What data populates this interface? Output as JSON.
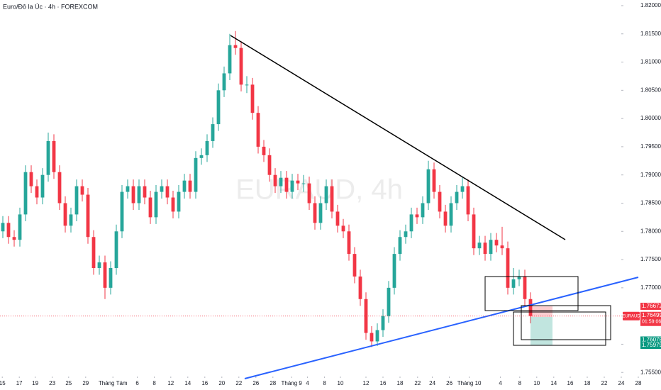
{
  "chart_data": {
    "type": "candlestick",
    "title": "Euro/Đô la Úc · 4h · FOREXCOM",
    "watermark": "EURAUD, 4h",
    "up_color": "#26a69a",
    "down_color": "#f23645",
    "grid": false,
    "ylim": [
      1.7544,
      1.821
    ],
    "yticks": [
      {
        "value": 1.755,
        "label": "1.75500"
      },
      {
        "value": 1.76,
        "label": "1.76000"
      },
      {
        "value": 1.765,
        "label": "1.76500"
      },
      {
        "value": 1.77,
        "label": "1.77000"
      },
      {
        "value": 1.775,
        "label": "1.77500"
      },
      {
        "value": 1.78,
        "label": "1.78000"
      },
      {
        "value": 1.785,
        "label": "1.78500"
      },
      {
        "value": 1.79,
        "label": "1.79000"
      },
      {
        "value": 1.795,
        "label": "1.79500"
      },
      {
        "value": 1.8,
        "label": "1.80000"
      },
      {
        "value": 1.805,
        "label": "1.80500"
      },
      {
        "value": 1.81,
        "label": "1.81000"
      },
      {
        "value": 1.815,
        "label": "1.81500"
      },
      {
        "value": 1.82,
        "label": "1.82000"
      }
    ],
    "xlim": [
      0,
      116.5
    ],
    "xticks": [
      {
        "value": 0.4,
        "label": "15"
      },
      {
        "value": 3.4,
        "label": "17"
      },
      {
        "value": 6.2,
        "label": "19"
      },
      {
        "value": 9.2,
        "label": "23"
      },
      {
        "value": 12.1,
        "label": "25"
      },
      {
        "value": 15.1,
        "label": "29"
      },
      {
        "value": 19.9,
        "label": "Tháng Tám"
      },
      {
        "value": 24.2,
        "label": "6"
      },
      {
        "value": 27.2,
        "label": "8"
      },
      {
        "value": 30.1,
        "label": "12"
      },
      {
        "value": 33.1,
        "label": "14"
      },
      {
        "value": 36.1,
        "label": "16"
      },
      {
        "value": 39.1,
        "label": "20"
      },
      {
        "value": 42.1,
        "label": "22"
      },
      {
        "value": 45.1,
        "label": "26"
      },
      {
        "value": 48.1,
        "label": "28"
      },
      {
        "value": 51.4,
        "label": "Tháng 9"
      },
      {
        "value": 54.2,
        "label": "4"
      },
      {
        "value": 57.2,
        "label": "8"
      },
      {
        "value": 60,
        "label": "10"
      },
      {
        "value": 64.5,
        "label": "12"
      },
      {
        "value": 67.5,
        "label": "16"
      },
      {
        "value": 70.5,
        "label": "18"
      },
      {
        "value": 73.6,
        "label": "22"
      },
      {
        "value": 76.2,
        "label": "24"
      },
      {
        "value": 79.2,
        "label": "26"
      },
      {
        "value": 82.7,
        "label": "Tháng 10"
      },
      {
        "value": 88.2,
        "label": "4"
      },
      {
        "value": 91.6,
        "label": "8"
      },
      {
        "value": 94.6,
        "label": "10"
      },
      {
        "value": 97.6,
        "label": "14"
      },
      {
        "value": 100.5,
        "label": "16"
      },
      {
        "value": 103.5,
        "label": "18"
      },
      {
        "value": 106.5,
        "label": "22"
      },
      {
        "value": 109.5,
        "label": "24"
      },
      {
        "value": 112.5,
        "label": "28"
      }
    ],
    "open": [
      1.78,
      1.7815,
      1.779,
      1.7785,
      1.783,
      1.7905,
      1.788,
      1.786,
      1.79,
      1.796,
      1.7905,
      1.785,
      1.781,
      1.783,
      1.788,
      1.7865,
      1.779,
      1.7735,
      1.7745,
      1.77,
      1.7735,
      1.78,
      1.787,
      1.788,
      1.785,
      1.788,
      1.786,
      1.7825,
      1.787,
      1.788,
      1.786,
      1.7835,
      1.787,
      1.789,
      1.787,
      1.793,
      1.7935,
      1.796,
      1.799,
      1.805,
      1.808,
      1.813,
      1.8125,
      1.806,
      1.806,
      1.801,
      1.795,
      1.7935,
      1.79,
      1.788,
      1.7895,
      1.787,
      1.789,
      1.7885,
      1.7885,
      1.785,
      1.7815,
      1.785,
      1.788,
      1.7835,
      1.781,
      1.78,
      1.776,
      1.772,
      1.768,
      1.762,
      1.7605,
      1.7625,
      1.765,
      1.77,
      1.776,
      1.779,
      1.78,
      1.783,
      1.7825,
      1.785,
      1.791,
      1.787,
      1.7835,
      1.781,
      1.785,
      1.787,
      1.788,
      1.783,
      1.777,
      1.778,
      1.776,
      1.7785,
      1.7775,
      1.777,
      1.77,
      1.7715,
      1.772,
      1.768
    ],
    "high": [
      1.7827,
      1.7827,
      1.7802,
      1.7842,
      1.7917,
      1.7917,
      1.7892,
      1.7912,
      1.7975,
      1.7972,
      1.7917,
      1.7862,
      1.7842,
      1.7892,
      1.7892,
      1.7877,
      1.7802,
      1.7757,
      1.7757,
      1.7747,
      1.7812,
      1.7882,
      1.7892,
      1.7892,
      1.7892,
      1.7892,
      1.7872,
      1.7882,
      1.7892,
      1.7892,
      1.7872,
      1.7882,
      1.7902,
      1.7902,
      1.7942,
      1.7947,
      1.7972,
      1.8002,
      1.8062,
      1.8092,
      1.815,
      1.8155,
      1.8137,
      1.8075,
      1.8072,
      1.8022,
      1.7962,
      1.7947,
      1.7912,
      1.7907,
      1.7907,
      1.7902,
      1.7902,
      1.79,
      1.7897,
      1.7862,
      1.7862,
      1.7892,
      1.7892,
      1.7847,
      1.7822,
      1.7812,
      1.7772,
      1.7732,
      1.7692,
      1.7632,
      1.7637,
      1.7662,
      1.7712,
      1.7772,
      1.7802,
      1.7812,
      1.7842,
      1.7842,
      1.7862,
      1.7925,
      1.7922,
      1.7882,
      1.7847,
      1.7862,
      1.7882,
      1.7895,
      1.7892,
      1.7842,
      1.7792,
      1.7792,
      1.7797,
      1.7797,
      1.7808,
      1.7782,
      1.7735,
      1.7732,
      1.7732,
      1.7692
    ],
    "low": [
      1.7788,
      1.7778,
      1.7773,
      1.7773,
      1.7818,
      1.7868,
      1.7848,
      1.7848,
      1.7888,
      1.7893,
      1.7838,
      1.7798,
      1.7798,
      1.7818,
      1.7853,
      1.7778,
      1.7723,
      1.7723,
      1.768,
      1.7688,
      1.7723,
      1.7788,
      1.7858,
      1.7838,
      1.7838,
      1.7848,
      1.7813,
      1.7813,
      1.7858,
      1.7848,
      1.7823,
      1.7823,
      1.7858,
      1.7858,
      1.7858,
      1.7918,
      1.7923,
      1.7948,
      1.7978,
      1.8038,
      1.8068,
      1.8113,
      1.8048,
      1.8045,
      1.7998,
      1.7938,
      1.7923,
      1.7888,
      1.7868,
      1.7868,
      1.7858,
      1.7858,
      1.7873,
      1.787,
      1.7838,
      1.7803,
      1.7803,
      1.7838,
      1.7823,
      1.7798,
      1.7788,
      1.7748,
      1.7708,
      1.7668,
      1.7608,
      1.7595,
      1.7597,
      1.7613,
      1.7638,
      1.7688,
      1.7748,
      1.7778,
      1.7788,
      1.7813,
      1.7813,
      1.7838,
      1.7858,
      1.7823,
      1.7798,
      1.7798,
      1.7838,
      1.7858,
      1.7818,
      1.7758,
      1.7758,
      1.7748,
      1.7748,
      1.7763,
      1.7758,
      1.7688,
      1.7688,
      1.7703,
      1.7668,
      1.7637
    ],
    "close": [
      1.7815,
      1.779,
      1.7785,
      1.783,
      1.7905,
      1.788,
      1.786,
      1.79,
      1.796,
      1.7905,
      1.785,
      1.781,
      1.783,
      1.788,
      1.7865,
      1.779,
      1.7735,
      1.7745,
      1.77,
      1.7735,
      1.78,
      1.787,
      1.788,
      1.785,
      1.788,
      1.786,
      1.7825,
      1.787,
      1.788,
      1.786,
      1.7835,
      1.787,
      1.789,
      1.787,
      1.793,
      1.7935,
      1.796,
      1.799,
      1.805,
      1.808,
      1.813,
      1.8125,
      1.806,
      1.806,
      1.801,
      1.795,
      1.7935,
      1.79,
      1.788,
      1.7895,
      1.787,
      1.789,
      1.7885,
      1.7885,
      1.785,
      1.7815,
      1.785,
      1.788,
      1.7835,
      1.781,
      1.78,
      1.776,
      1.772,
      1.768,
      1.762,
      1.7605,
      1.7625,
      1.765,
      1.77,
      1.776,
      1.779,
      1.78,
      1.783,
      1.7825,
      1.785,
      1.791,
      1.787,
      1.7835,
      1.781,
      1.785,
      1.787,
      1.788,
      1.783,
      1.777,
      1.778,
      1.776,
      1.7785,
      1.7775,
      1.777,
      1.77,
      1.7715,
      1.772,
      1.768,
      1.765
    ],
    "symbol_label": "EURAUD",
    "last_price": {
      "value": 1.76499,
      "label": "1.76499",
      "countdown": "01:59:06",
      "color": "#f23645"
    },
    "price_labels": [
      {
        "value": 1.76672,
        "label": "1.76672",
        "color": "#f23645"
      },
      {
        "value": 1.76075,
        "label": "1.76075",
        "color": "#089981"
      },
      {
        "value": 1.75979,
        "label": "1.75979",
        "color": "#089981"
      }
    ]
  }
}
